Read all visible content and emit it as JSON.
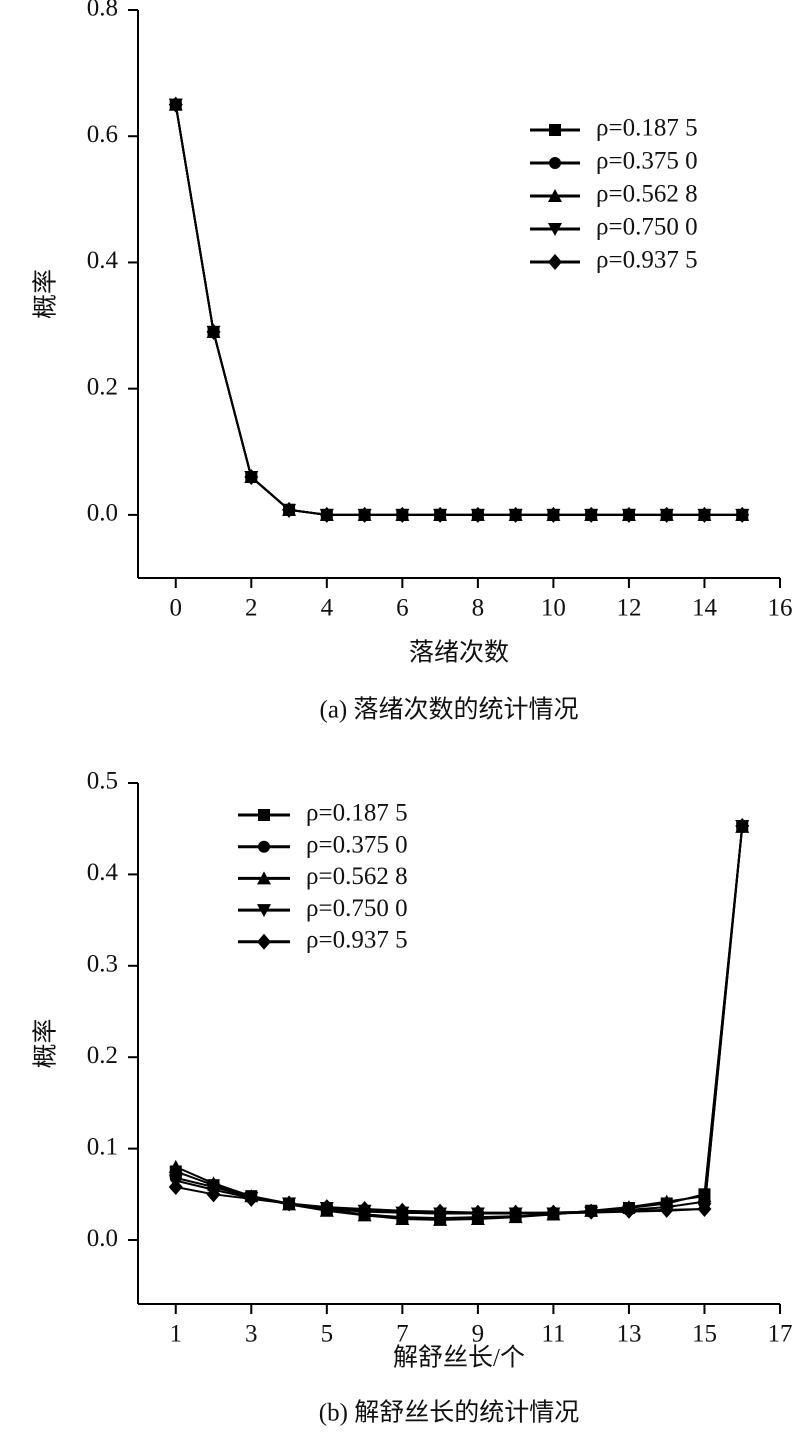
{
  "chart_data": [
    {
      "type": "line",
      "caption": "(a) 落绪次数的统计情况",
      "x_label": "落绪次数",
      "y_label": "概率",
      "x": [
        0,
        1,
        2,
        3,
        4,
        5,
        6,
        7,
        8,
        9,
        10,
        11,
        12,
        13,
        14,
        15
      ],
      "xlim": [
        -1,
        16
      ],
      "xticks": [
        0,
        2,
        4,
        6,
        8,
        10,
        12,
        14,
        16
      ],
      "ylim": [
        -0.1,
        0.8
      ],
      "yticks": [
        {
          "value": 0,
          "label": "0.0"
        },
        0.2,
        0.4,
        0.6,
        0.8
      ],
      "legend": "upper right",
      "series": [
        {
          "name": "ρ=0.187 5",
          "color": "#000000",
          "marker": "square",
          "values": [
            0.65,
            0.29,
            0.06,
            0.008,
            0,
            0,
            0,
            0,
            0,
            0,
            0,
            0,
            0,
            0,
            0,
            0
          ]
        },
        {
          "name": "ρ=0.375 0",
          "color": "#000000",
          "marker": "circle",
          "values": [
            0.65,
            0.29,
            0.06,
            0.008,
            0,
            0,
            0,
            0,
            0,
            0,
            0,
            0,
            0,
            0,
            0,
            0
          ]
        },
        {
          "name": "ρ=0.562 8",
          "color": "#000000",
          "marker": "triangle",
          "values": [
            0.65,
            0.29,
            0.06,
            0.008,
            0,
            0,
            0,
            0,
            0,
            0,
            0,
            0,
            0,
            0,
            0,
            0
          ]
        },
        {
          "name": "ρ=0.750 0",
          "color": "#000000",
          "marker": "triangle-down",
          "values": [
            0.65,
            0.29,
            0.06,
            0.008,
            0,
            0,
            0,
            0,
            0,
            0,
            0,
            0,
            0,
            0,
            0,
            0
          ]
        },
        {
          "name": "ρ=0.937 5",
          "color": "#000000",
          "marker": "diamond",
          "values": [
            0.65,
            0.29,
            0.06,
            0.008,
            0,
            0,
            0,
            0,
            0,
            0,
            0,
            0,
            0,
            0,
            0,
            0
          ]
        }
      ]
    },
    {
      "type": "line",
      "caption": "(b) 解舒丝长的统计情况",
      "x_label": "解舒丝长/个",
      "y_label": "概率",
      "x": [
        1,
        2,
        3,
        4,
        5,
        6,
        7,
        8,
        9,
        10,
        11,
        12,
        13,
        14,
        15,
        16
      ],
      "xlim": [
        0,
        17
      ],
      "xticks": [
        1,
        3,
        5,
        7,
        9,
        11,
        13,
        15,
        17
      ],
      "ylim": [
        -0.07,
        0.5
      ],
      "yticks": [
        {
          "value": 0,
          "label": "0.0"
        },
        0.1,
        0.2,
        0.3,
        0.4,
        0.5
      ],
      "legend": "upper left",
      "series": [
        {
          "name": "ρ=0.187 5",
          "color": "#000000",
          "marker": "square",
          "values": [
            0.075,
            0.06,
            0.048,
            0.04,
            0.033,
            0.028,
            0.025,
            0.024,
            0.025,
            0.026,
            0.028,
            0.032,
            0.035,
            0.04,
            0.05,
            0.453
          ]
        },
        {
          "name": "ρ=0.375 0",
          "color": "#000000",
          "marker": "circle",
          "values": [
            0.068,
            0.058,
            0.047,
            0.039,
            0.034,
            0.031,
            0.03,
            0.029,
            0.029,
            0.029,
            0.03,
            0.031,
            0.033,
            0.036,
            0.042,
            0.453
          ]
        },
        {
          "name": "ρ=0.562 8",
          "color": "#000000",
          "marker": "triangle",
          "values": [
            0.08,
            0.062,
            0.048,
            0.039,
            0.032,
            0.027,
            0.023,
            0.022,
            0.023,
            0.025,
            0.028,
            0.032,
            0.036,
            0.042,
            0.048,
            0.452
          ]
        },
        {
          "name": "ρ=0.750 0",
          "color": "#000000",
          "marker": "triangle-down",
          "values": [
            0.065,
            0.055,
            0.046,
            0.04,
            0.035,
            0.032,
            0.03,
            0.029,
            0.029,
            0.029,
            0.029,
            0.03,
            0.031,
            0.032,
            0.034,
            0.453
          ]
        },
        {
          "name": "ρ=0.937 5",
          "color": "#000000",
          "marker": "diamond",
          "values": [
            0.058,
            0.05,
            0.045,
            0.04,
            0.036,
            0.034,
            0.032,
            0.031,
            0.03,
            0.03,
            0.03,
            0.031,
            0.032,
            0.033,
            0.034,
            0.453
          ]
        }
      ]
    }
  ]
}
